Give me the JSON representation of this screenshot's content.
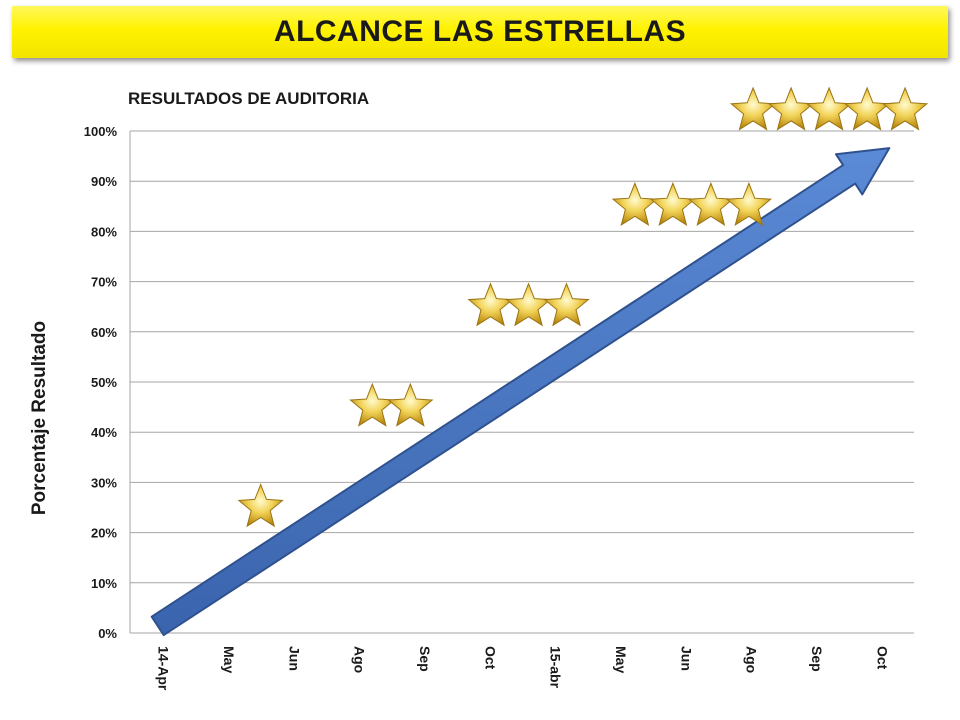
{
  "banner": {
    "title": "ALCANCE LAS ESTRELLAS"
  },
  "chart_data": {
    "type": "line",
    "title": "RESULTADOS DE AUDITORIA",
    "ylabel": "Porcentaje Resultado",
    "xlabel": "",
    "categories": [
      "14-Apr",
      "May",
      "Jun",
      "Ago",
      "Sep",
      "Oct",
      "15-abr",
      "May",
      "Jun",
      "Ago",
      "Sep",
      "Oct"
    ],
    "yticks": [
      "0%",
      "10%",
      "20%",
      "30%",
      "40%",
      "50%",
      "60%",
      "70%",
      "80%",
      "90%",
      "100%"
    ],
    "ylim": [
      0,
      100
    ],
    "grid": true,
    "trend_arrow": {
      "from": {
        "category_index": 0,
        "value": 3
      },
      "to": {
        "category_index": 11,
        "value": 95
      },
      "color": "#4a78c4"
    },
    "star_levels": [
      {
        "stars": 1,
        "value": 25,
        "category_center": 1.5
      },
      {
        "stars": 2,
        "value": 45,
        "category_center": 3.5
      },
      {
        "stars": 3,
        "value": 65,
        "category_center": 5.6
      },
      {
        "stars": 4,
        "value": 85,
        "category_center": 8.1
      },
      {
        "stars": 5,
        "value": 104,
        "category_center": 10.2
      }
    ],
    "colors": {
      "star": "#e8c23a",
      "grid": "#a6a6a6",
      "banner": "#fff200"
    }
  }
}
